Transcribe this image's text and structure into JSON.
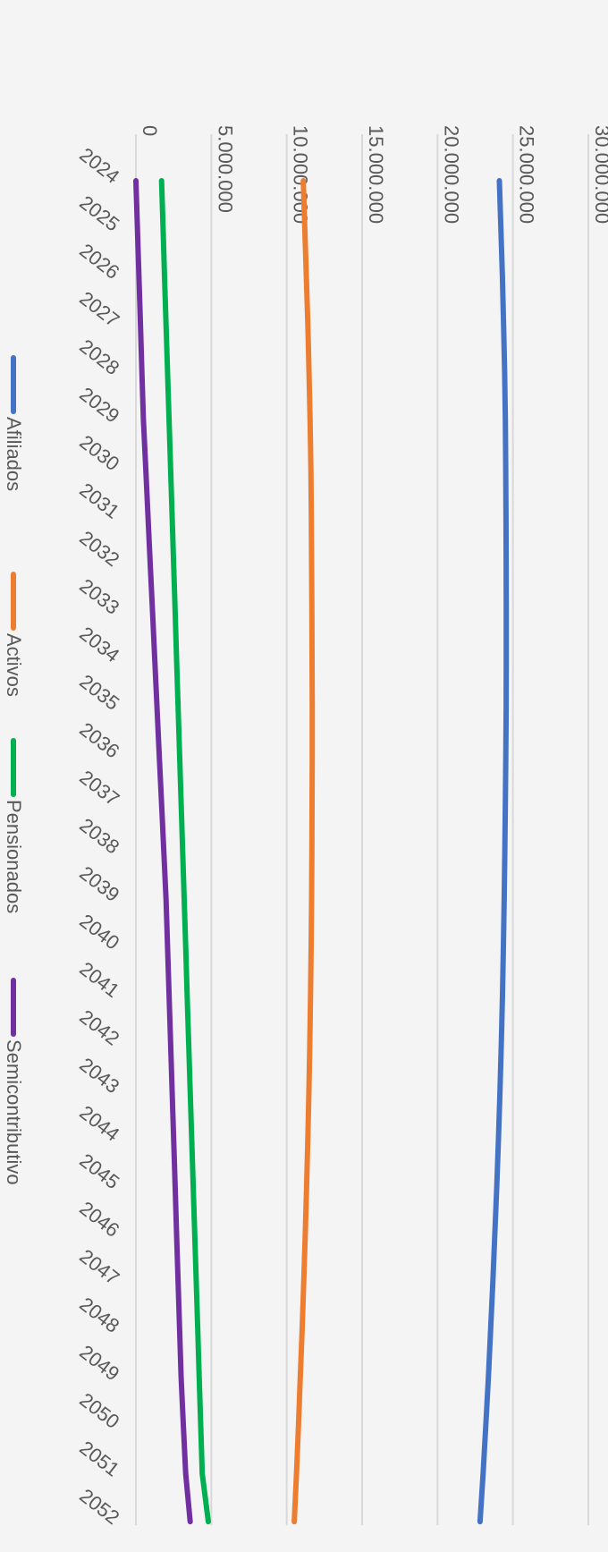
{
  "chart_data": {
    "type": "line",
    "orientation": "rotated-90-clockwise",
    "title": "",
    "xlabel": "",
    "ylabel": "",
    "ylim": [
      0,
      30000000
    ],
    "y_ticks": [
      0,
      5000000,
      10000000,
      15000000,
      20000000,
      25000000,
      30000000
    ],
    "y_tick_labels": [
      "0",
      "5.000.000",
      "10.000.000",
      "15.000.000",
      "20.000.000",
      "25.000.000",
      "30.000.000"
    ],
    "grid": true,
    "legend_position": "bottom",
    "categories": [
      "2024",
      "2025",
      "2026",
      "2027",
      "2028",
      "2029",
      "2030",
      "2031",
      "2032",
      "2033",
      "2034",
      "2035",
      "2036",
      "2037",
      "2038",
      "2039",
      "2040",
      "2041",
      "2042",
      "2043",
      "2044",
      "2045",
      "2046",
      "2047",
      "2048",
      "2049",
      "2050",
      "2051",
      "2052"
    ],
    "series": [
      {
        "name": "Afiliados",
        "color": "#4472c4",
        "values": [
          24100000,
          24200000,
          24300000,
          24380000,
          24450000,
          24500000,
          24520000,
          24540000,
          24550000,
          24560000,
          24560000,
          24550000,
          24530000,
          24500000,
          24460000,
          24420000,
          24370000,
          24310000,
          24230000,
          24140000,
          24040000,
          23930000,
          23800000,
          23670000,
          23520000,
          23370000,
          23200000,
          23020000,
          22820000
        ]
      },
      {
        "name": "Activos",
        "color": "#ed7d31",
        "values": [
          11100000,
          11200000,
          11300000,
          11400000,
          11480000,
          11550000,
          11600000,
          11630000,
          11650000,
          11670000,
          11680000,
          11690000,
          11690000,
          11680000,
          11670000,
          11650000,
          11620000,
          11580000,
          11530000,
          11470000,
          11400000,
          11320000,
          11230000,
          11130000,
          11020000,
          10900000,
          10780000,
          10650000,
          10500000
        ]
      },
      {
        "name": "Pensionados",
        "color": "#00b050",
        "values": [
          1700000,
          1800000,
          1900000,
          2000000,
          2100000,
          2200000,
          2300000,
          2400000,
          2500000,
          2600000,
          2700000,
          2800000,
          2900000,
          3000000,
          3100000,
          3200000,
          3300000,
          3400000,
          3500000,
          3600000,
          3700000,
          3800000,
          3900000,
          4000000,
          4100000,
          4200000,
          4300000,
          4400000,
          4800000
        ]
      },
      {
        "name": "Semicontributivo",
        "color": "#7030a0",
        "values": [
          0,
          100000,
          200000,
          300000,
          400000,
          500000,
          650000,
          800000,
          950000,
          1100000,
          1250000,
          1400000,
          1550000,
          1700000,
          1850000,
          2000000,
          2100000,
          2200000,
          2300000,
          2400000,
          2500000,
          2600000,
          2700000,
          2800000,
          2900000,
          3000000,
          3150000,
          3300000,
          3600000
        ]
      }
    ]
  }
}
